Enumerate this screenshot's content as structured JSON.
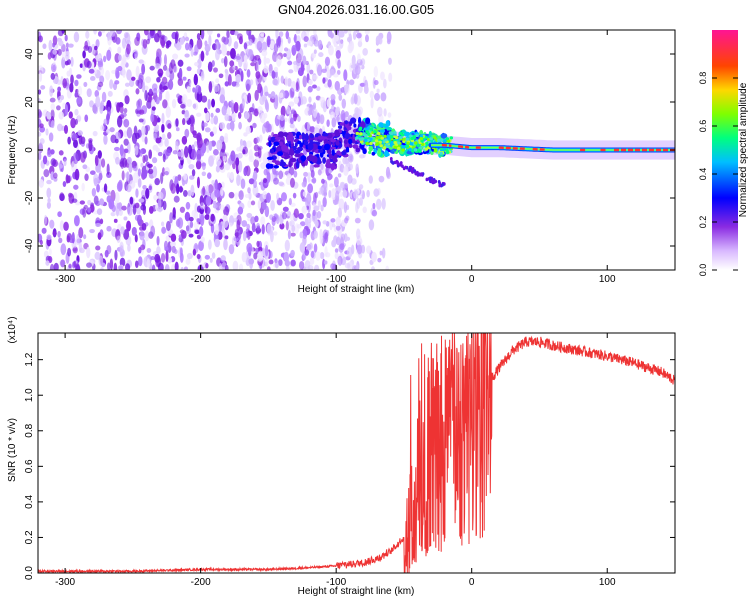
{
  "figure_title": "GN04.2026.031.16.00.G05",
  "chart_data": [
    {
      "type": "heatmap",
      "xlabel": "Height of straight line (km)",
      "ylabel": "Frequency (Hz)",
      "xlim": [
        -320,
        150
      ],
      "ylim": [
        -50,
        50
      ],
      "x_ticks": [
        -300,
        -200,
        -100,
        0,
        100
      ],
      "y_ticks": [
        -40,
        -20,
        0,
        20,
        40
      ],
      "colorbar": {
        "label": "Normalized spectral amplitude",
        "range": [
          0.0,
          1.0
        ],
        "ticks": [
          0.0,
          0.2,
          0.4,
          0.6,
          0.8
        ],
        "colors": [
          "#ffffff",
          "#8a2be2",
          "#0000ff",
          "#00bfff",
          "#00ff7f",
          "#7fff00",
          "#ffd700",
          "#ff4500",
          "#ff1493"
        ]
      },
      "signal_track": {
        "x": [
          -100,
          -80,
          -60,
          -45,
          -30,
          -20,
          0,
          20,
          60,
          100,
          150
        ],
        "frequency": [
          4,
          6,
          4,
          3,
          2,
          2,
          1,
          1,
          0,
          0,
          0
        ]
      },
      "noise_extent_x": [
        -320,
        -80
      ]
    },
    {
      "type": "line",
      "xlabel": "Height of straight line (km)",
      "ylabel": "SNR (10 * v/v)",
      "y_scale_label": "(x10⁴)",
      "xlim": [
        -320,
        150
      ],
      "ylim": [
        0,
        1.35
      ],
      "x_ticks": [
        -300,
        -200,
        -100,
        0,
        100
      ],
      "y_ticks": [
        0.0,
        0.2,
        0.4,
        0.6,
        0.8,
        1.0,
        1.2
      ],
      "line_color": "#ee3333",
      "series": [
        {
          "name": "SNR",
          "x": [
            -320,
            -250,
            -200,
            -150,
            -120,
            -100,
            -80,
            -70,
            -60,
            -50,
            -45,
            -40,
            -35,
            -30,
            -25,
            -20,
            -15,
            -10,
            -5,
            0,
            10,
            20,
            30,
            40,
            50,
            60,
            80,
            100,
            120,
            140,
            150
          ],
          "values": [
            0.01,
            0.01,
            0.02,
            0.02,
            0.03,
            0.04,
            0.06,
            0.08,
            0.12,
            0.2,
            0.3,
            0.45,
            0.6,
            0.7,
            0.72,
            0.75,
            0.78,
            0.85,
            0.9,
            0.95,
            1.05,
            1.15,
            1.25,
            1.3,
            1.3,
            1.28,
            1.25,
            1.22,
            1.18,
            1.13,
            1.08
          ]
        }
      ]
    }
  ]
}
